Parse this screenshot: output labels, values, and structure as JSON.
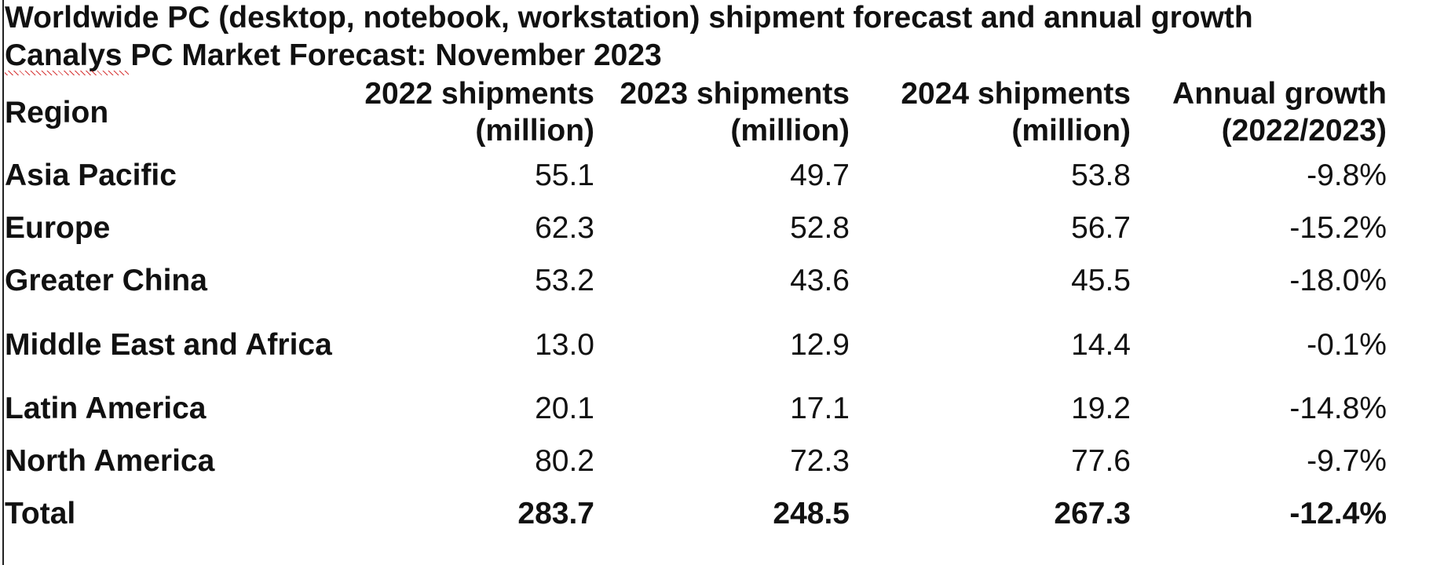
{
  "title": "Worldwide PC (desktop, notebook, workstation) shipment forecast and annual growth",
  "subtitle": "Canalys PC Market Forecast: November 2023",
  "columns": {
    "region": "Region",
    "y2022": {
      "line1": "2022 shipments",
      "line2": "(million)"
    },
    "y2023": {
      "line1": "2023 shipments",
      "line2": "(million)"
    },
    "y2024": {
      "line1": "2024 shipments",
      "line2": "(million)"
    },
    "growth": {
      "line1": "Annual growth",
      "line2": "(2022/2023)"
    }
  },
  "rows": [
    {
      "region": "Asia Pacific",
      "y2022": "55.1",
      "y2023": "49.7",
      "y2024": "53.8",
      "growth": "-9.8%"
    },
    {
      "region": "Europe",
      "y2022": "62.3",
      "y2023": "52.8",
      "y2024": "56.7",
      "growth": "-15.2%"
    },
    {
      "region": "Greater China",
      "y2022": "53.2",
      "y2023": "43.6",
      "y2024": "45.5",
      "growth": "-18.0%"
    },
    {
      "region": "Middle East and Africa",
      "y2022": "13.0",
      "y2023": "12.9",
      "y2024": "14.4",
      "growth": "-0.1%"
    },
    {
      "region": "Latin America",
      "y2022": "20.1",
      "y2023": "17.1",
      "y2024": "19.2",
      "growth": "-14.8%"
    },
    {
      "region": "North America",
      "y2022": "80.2",
      "y2023": "72.3",
      "y2024": "77.6",
      "growth": "-9.7%"
    }
  ],
  "total": {
    "region": "Total",
    "y2022": "283.7",
    "y2023": "248.5",
    "y2024": "267.3",
    "growth": "-12.4%"
  },
  "colors": {
    "text": "#111111",
    "background": "#ffffff",
    "spellcheck_underline": "#d21f1f"
  }
}
